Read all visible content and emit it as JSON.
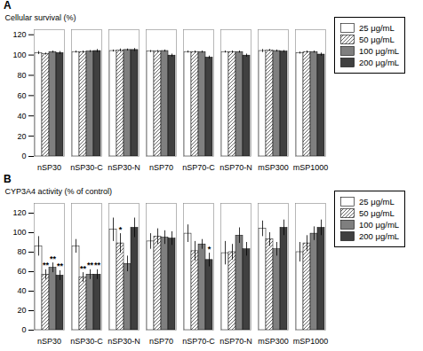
{
  "chart_data": [
    {
      "type": "bar",
      "title": "A",
      "categories": [
        "nSP30",
        "nSP30-C",
        "nSP30-N",
        "nSP70",
        "nSP70-C",
        "nSP70-N",
        "mSP300",
        "mSP1000"
      ],
      "ylabel": "Cellular survival (%)",
      "ylim": [
        0,
        125
      ],
      "yticks": [
        0,
        20,
        40,
        60,
        80,
        100,
        120
      ],
      "grid": false,
      "legend": "right",
      "series": [
        {
          "name": "25 μg/mL",
          "color": "white",
          "values": [
            102,
            103,
            104,
            103.5,
            103,
            103,
            104,
            102
          ],
          "errors": [
            1.5,
            1.0,
            1.0,
            1.0,
            1.0,
            1.0,
            1.5,
            1.0
          ]
        },
        {
          "name": "50 μg/mL",
          "color": "white",
          "values": [
            101,
            103,
            104.5,
            103.5,
            103,
            103,
            104.5,
            103
          ],
          "errors": [
            1.0,
            1.0,
            1.5,
            1.0,
            1.0,
            1.0,
            1.0,
            1.0
          ]
        },
        {
          "name": "100 μg/mL",
          "color": "#7f7f7f",
          "values": [
            103,
            103.5,
            105,
            104,
            103,
            103,
            104,
            103
          ],
          "errors": [
            1.0,
            1.0,
            1.0,
            1.0,
            1.0,
            1.0,
            1.0,
            1.0
          ]
        },
        {
          "name": "200 μg/mL",
          "color": "#404040",
          "values": [
            102,
            104,
            105,
            99.5,
            97.5,
            99.5,
            103.5,
            100.5
          ],
          "errors": [
            1.5,
            1.5,
            1.5,
            1.5,
            1.5,
            1.5,
            1.0,
            1.5
          ]
        }
      ]
    },
    {
      "type": "bar",
      "title": "B",
      "categories": [
        "nSP30",
        "nSP30-C",
        "nSP30-N",
        "nSP70",
        "nSP70-C",
        "nSP70-N",
        "mSP300",
        "mSP1000"
      ],
      "ylabel": "CYP3A4 activity (% of control)",
      "ylim": [
        0,
        130
      ],
      "yticks": [
        0,
        20,
        40,
        60,
        80,
        100,
        120
      ],
      "grid": false,
      "legend": "right",
      "series": [
        {
          "name": "25 μg/mL",
          "color": "white",
          "values": [
            86,
            86,
            103,
            91,
            99,
            79,
            104,
            80
          ],
          "errors": [
            10,
            7,
            12,
            8,
            9,
            12,
            8,
            10
          ]
        },
        {
          "name": "50 μg/mL",
          "color": "white",
          "values": [
            57,
            54,
            89,
            96,
            81,
            80,
            93,
            89
          ],
          "errors": [
            5,
            5,
            10,
            8,
            10,
            8,
            7,
            8
          ]
        },
        {
          "name": "100 μg/mL",
          "color": "#7f7f7f",
          "values": [
            64,
            57,
            68,
            95,
            88,
            97,
            83,
            99
          ],
          "errors": [
            5,
            5,
            8,
            7,
            5,
            8,
            7,
            7
          ]
        },
        {
          "name": "200 μg/mL",
          "color": "#404040",
          "values": [
            56,
            57,
            105,
            94,
            72,
            83,
            105,
            105
          ],
          "errors": [
            5,
            5,
            10,
            7,
            7,
            7,
            8,
            8
          ]
        }
      ],
      "annotations": [
        {
          "category": "nSP30",
          "series": "50 μg/mL",
          "text": "**"
        },
        {
          "category": "nSP30",
          "series": "100 μg/mL",
          "text": "**"
        },
        {
          "category": "nSP30",
          "series": "200 μg/mL",
          "text": "**"
        },
        {
          "category": "nSP30-C",
          "series": "50 μg/mL",
          "text": "**"
        },
        {
          "category": "nSP30-C",
          "series": "100 μg/mL",
          "text": "**"
        },
        {
          "category": "nSP30-C",
          "series": "200 μg/mL",
          "text": "**"
        },
        {
          "category": "nSP30-N",
          "series": "50 μg/mL",
          "text": "*"
        },
        {
          "category": "nSP70-C",
          "series": "200 μg/mL",
          "text": "*"
        }
      ]
    }
  ]
}
